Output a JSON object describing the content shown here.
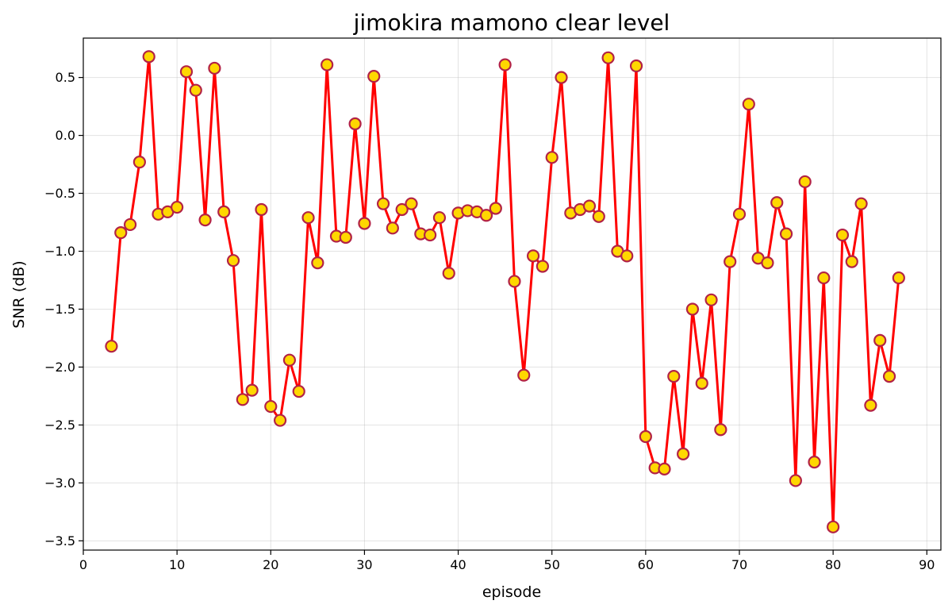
{
  "chart_data": {
    "type": "line",
    "title": "jimokira mamono clear level",
    "xlabel": "episode",
    "ylabel": "SNR (dB)",
    "xlim": [
      0,
      91.5
    ],
    "ylim": [
      -3.58,
      0.84
    ],
    "xticks": [
      0,
      10,
      20,
      30,
      40,
      50,
      60,
      70,
      80,
      90
    ],
    "yticks": [
      -3.5,
      -3.0,
      -2.5,
      -2.0,
      -1.5,
      -1.0,
      -0.5,
      0.0,
      0.5
    ],
    "xtick_labels": [
      "0",
      "10",
      "20",
      "30",
      "40",
      "50",
      "60",
      "70",
      "80",
      "90"
    ],
    "ytick_labels": [
      "−3.5",
      "−3.0",
      "−2.5",
      "−2.0",
      "−1.5",
      "−1.0",
      "−0.5",
      "0.0",
      "0.5"
    ],
    "grid": true,
    "line_color": "#ff0000",
    "marker_face": "#ffd700",
    "marker_edge": "#b22246",
    "series": [
      {
        "name": "SNR",
        "x": [
          3,
          4,
          5,
          6,
          7,
          8,
          9,
          10,
          11,
          12,
          13,
          14,
          15,
          16,
          17,
          18,
          19,
          20,
          21,
          22,
          23,
          24,
          25,
          26,
          27,
          28,
          29,
          30,
          31,
          32,
          33,
          34,
          35,
          36,
          37,
          38,
          39,
          40,
          41,
          42,
          43,
          44,
          45,
          46,
          47,
          48,
          49,
          50,
          51,
          52,
          53,
          54,
          55,
          56,
          57,
          58,
          59,
          60,
          61,
          62,
          63,
          64,
          65,
          66,
          67,
          68,
          69,
          70,
          71,
          72,
          73,
          74,
          75,
          76,
          77,
          78,
          79,
          80,
          81,
          82,
          83,
          84,
          85,
          86,
          87
        ],
        "y": [
          -1.82,
          -0.84,
          -0.77,
          -0.23,
          0.68,
          -0.68,
          -0.66,
          -0.62,
          0.55,
          0.39,
          -0.73,
          0.58,
          -0.66,
          -1.08,
          -2.28,
          -2.2,
          -0.64,
          -2.34,
          -2.46,
          -1.94,
          -2.21,
          -0.71,
          -1.1,
          0.61,
          -0.87,
          -0.88,
          0.1,
          -0.76,
          0.51,
          -0.59,
          -0.8,
          -0.64,
          -0.59,
          -0.85,
          -0.86,
          -0.71,
          -1.19,
          -0.67,
          -0.65,
          -0.66,
          -0.69,
          -0.63,
          0.61,
          -1.26,
          -2.07,
          -1.04,
          -1.13,
          -0.19,
          0.5,
          -0.67,
          -0.64,
          -0.61,
          -0.7,
          0.67,
          -1.0,
          -1.04,
          0.6,
          -2.6,
          -2.87,
          -2.88,
          -2.08,
          -2.75,
          -1.5,
          -2.14,
          -1.42,
          -2.54,
          -1.09,
          -0.68,
          0.27,
          -1.06,
          -1.1,
          -0.58,
          -0.85,
          -2.98,
          -0.4,
          -2.82,
          -1.23,
          -3.38,
          -0.86,
          -1.09,
          -0.59,
          -2.33,
          -1.77,
          -2.08,
          -1.23
        ]
      }
    ]
  }
}
